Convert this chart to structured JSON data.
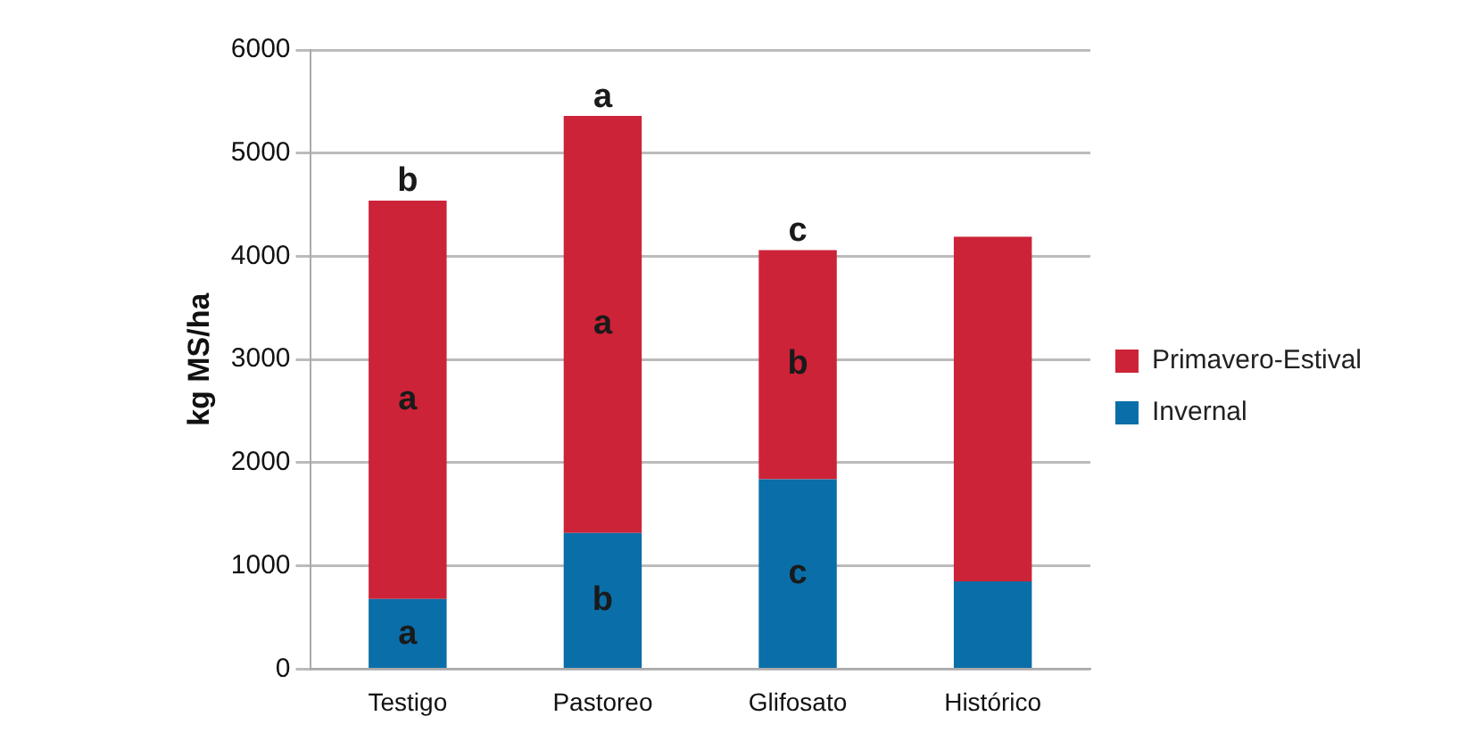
{
  "chart_data": {
    "type": "bar",
    "ylabel": "kg MS/ha",
    "categories": [
      "Testigo",
      "Pastoreo",
      "Glifosato",
      "Histórico"
    ],
    "stacked": true,
    "series": [
      {
        "name": "Invernal",
        "color": "#0a6ea8",
        "values": [
          680,
          1320,
          1840,
          850
        ]
      },
      {
        "name": "Primavero-Estival",
        "color": "#cc2338",
        "values": [
          3860,
          4040,
          2220,
          3340
        ]
      }
    ],
    "ylim": [
      0,
      6000
    ],
    "yticks": [
      0,
      1000,
      2000,
      3000,
      4000,
      5000,
      6000
    ],
    "grid": "y",
    "legend": "right",
    "annotations": [
      {
        "text": "b",
        "x": "Testigo",
        "y": 4540
      },
      {
        "text": "a",
        "x": "Pastoreo",
        "y": 5360
      },
      {
        "text": "c",
        "x": "Glifosato",
        "y": 4060
      },
      "a",
      "a",
      "b",
      {
        "text": "a",
        "x": "Testigo",
        "y": 680
      },
      {
        "text": "b",
        "x": "Pastoreo",
        "y": 1320
      },
      {
        "text": "c",
        "x": "Glifosato",
        "y": 1840
      }
    ]
  }
}
